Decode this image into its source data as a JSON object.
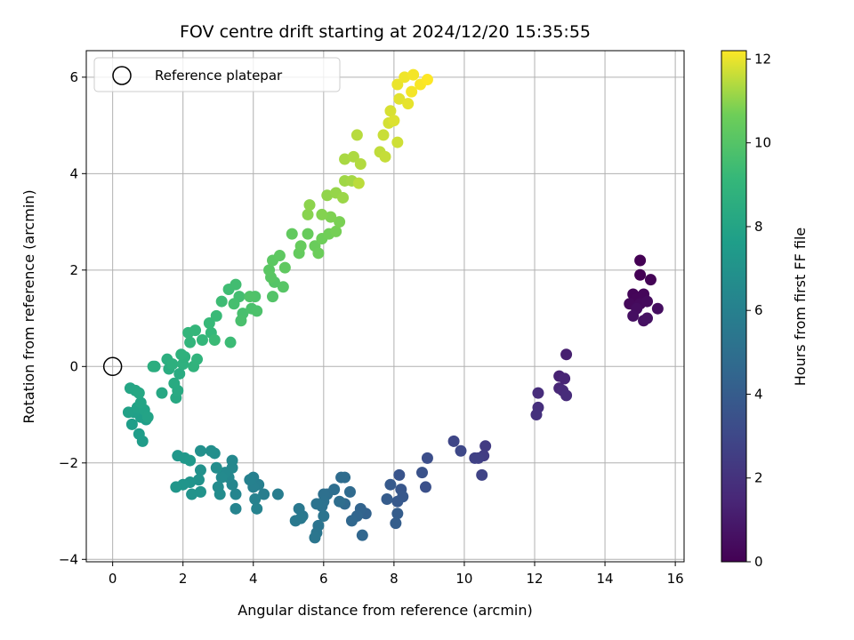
{
  "chart_data": {
    "type": "scatter",
    "title": "FOV centre drift starting at 2024/12/20 15:35:55",
    "xlabel": "Angular distance from reference (arcmin)",
    "ylabel": "Rotation from reference (arcmin)",
    "xlim": [
      -0.75,
      16.25
    ],
    "ylim": [
      -4.05,
      6.55
    ],
    "xticks": [
      0,
      2,
      4,
      6,
      8,
      10,
      12,
      14,
      16
    ],
    "yticks": [
      -4,
      -2,
      0,
      2,
      4,
      6
    ],
    "grid": true,
    "legend": {
      "placement": "top-left",
      "entries": [
        "Reference platepar"
      ]
    },
    "reference_point": {
      "x": 0,
      "y": 0,
      "label": "Reference platepar"
    },
    "colorbar": {
      "label": "Hours from first FF file",
      "range": [
        0,
        12.2
      ],
      "ticks": [
        0,
        2,
        4,
        6,
        8,
        10,
        12
      ],
      "colormap": "viridis"
    },
    "points_anchor": [
      [
        15.0,
        2.2,
        0.0
      ],
      [
        15.0,
        1.9,
        0.05
      ],
      [
        15.3,
        1.8,
        0.1
      ],
      [
        14.8,
        1.5,
        0.15
      ],
      [
        14.9,
        1.4,
        0.2
      ],
      [
        15.1,
        1.5,
        0.25
      ],
      [
        14.7,
        1.3,
        0.3
      ],
      [
        15.0,
        1.3,
        0.35
      ],
      [
        15.2,
        1.35,
        0.4
      ],
      [
        14.9,
        1.2,
        0.45
      ],
      [
        15.5,
        1.2,
        0.5
      ],
      [
        14.8,
        1.05,
        0.55
      ],
      [
        15.1,
        0.95,
        0.6
      ],
      [
        15.2,
        1.0,
        0.65
      ],
      [
        12.9,
        0.25,
        1.2
      ],
      [
        12.7,
        -0.2,
        1.3
      ],
      [
        12.85,
        -0.25,
        1.4
      ],
      [
        12.7,
        -0.45,
        1.5
      ],
      [
        12.8,
        -0.5,
        1.6
      ],
      [
        12.9,
        -0.6,
        1.7
      ],
      [
        12.1,
        -0.55,
        1.75
      ],
      [
        12.1,
        -0.85,
        1.85
      ],
      [
        12.05,
        -1.0,
        1.95
      ],
      [
        10.6,
        -1.65,
        2.4
      ],
      [
        10.55,
        -1.85,
        2.5
      ],
      [
        10.4,
        -1.9,
        2.6
      ],
      [
        10.3,
        -1.9,
        2.7
      ],
      [
        10.5,
        -2.25,
        2.8
      ],
      [
        9.7,
        -1.55,
        2.9
      ],
      [
        9.9,
        -1.75,
        3.0
      ],
      [
        8.95,
        -1.9,
        3.3
      ],
      [
        8.9,
        -2.5,
        3.4
      ],
      [
        8.8,
        -2.2,
        3.5
      ],
      [
        8.15,
        -2.25,
        3.6
      ],
      [
        8.2,
        -2.55,
        3.7
      ],
      [
        8.25,
        -2.7,
        3.8
      ],
      [
        8.1,
        -2.8,
        3.85
      ],
      [
        7.9,
        -2.45,
        3.9
      ],
      [
        7.8,
        -2.75,
        4.0
      ],
      [
        8.1,
        -3.05,
        4.05
      ],
      [
        8.05,
        -3.25,
        4.1
      ],
      [
        7.2,
        -3.05,
        4.3
      ],
      [
        7.05,
        -2.95,
        4.4
      ],
      [
        6.95,
        -3.1,
        4.5
      ],
      [
        7.1,
        -3.5,
        4.55
      ],
      [
        6.8,
        -3.2,
        4.6
      ],
      [
        6.6,
        -2.85,
        4.7
      ],
      [
        6.75,
        -2.6,
        4.75
      ],
      [
        6.5,
        -2.3,
        4.8
      ],
      [
        6.6,
        -2.3,
        4.85
      ],
      [
        6.45,
        -2.8,
        4.9
      ],
      [
        6.3,
        -2.55,
        4.95
      ],
      [
        6.1,
        -2.65,
        5.0
      ],
      [
        6.0,
        -2.65,
        5.05
      ],
      [
        6.0,
        -2.8,
        5.1
      ],
      [
        5.95,
        -2.9,
        5.15
      ],
      [
        5.8,
        -2.85,
        5.2
      ],
      [
        6.0,
        -3.1,
        5.25
      ],
      [
        5.85,
        -3.3,
        5.3
      ],
      [
        5.8,
        -3.45,
        5.35
      ],
      [
        5.75,
        -3.55,
        5.4
      ],
      [
        5.4,
        -3.1,
        5.45
      ],
      [
        5.3,
        -2.95,
        5.5
      ],
      [
        5.2,
        -3.2,
        5.55
      ],
      [
        5.35,
        -3.15,
        5.6
      ],
      [
        4.7,
        -2.65,
        5.8
      ],
      [
        4.3,
        -2.65,
        5.85
      ],
      [
        4.15,
        -2.45,
        5.9
      ],
      [
        4.0,
        -2.3,
        5.95
      ],
      [
        4.0,
        -2.5,
        6.0
      ],
      [
        3.9,
        -2.35,
        6.05
      ],
      [
        4.05,
        -2.75,
        6.1
      ],
      [
        4.1,
        -2.95,
        6.15
      ],
      [
        3.5,
        -2.95,
        6.2
      ],
      [
        3.5,
        -2.65,
        6.25
      ],
      [
        3.4,
        -2.45,
        6.3
      ],
      [
        3.3,
        -2.3,
        6.35
      ],
      [
        3.4,
        -2.1,
        6.4
      ],
      [
        3.4,
        -1.95,
        6.45
      ],
      [
        3.2,
        -2.2,
        6.5
      ],
      [
        3.1,
        -2.3,
        6.55
      ],
      [
        3.0,
        -2.5,
        6.6
      ],
      [
        3.05,
        -2.65,
        6.65
      ],
      [
        2.95,
        -2.1,
        6.7
      ],
      [
        2.9,
        -1.8,
        6.75
      ],
      [
        2.8,
        -1.75,
        6.8
      ],
      [
        2.5,
        -1.75,
        6.85
      ],
      [
        2.5,
        -2.15,
        6.9
      ],
      [
        2.45,
        -2.35,
        6.95
      ],
      [
        2.5,
        -2.6,
        7.0
      ],
      [
        2.25,
        -2.65,
        7.05
      ],
      [
        2.2,
        -2.4,
        7.1
      ],
      [
        2.0,
        -2.45,
        7.15
      ],
      [
        1.8,
        -2.5,
        7.2
      ],
      [
        1.85,
        -1.85,
        7.25
      ],
      [
        2.05,
        -1.9,
        7.3
      ],
      [
        2.2,
        -1.95,
        7.35
      ],
      [
        0.85,
        -1.55,
        7.5
      ],
      [
        0.75,
        -1.4,
        7.55
      ],
      [
        0.55,
        -1.2,
        7.6
      ],
      [
        0.95,
        -1.1,
        7.65
      ],
      [
        0.8,
        -1.05,
        7.7
      ],
      [
        0.6,
        -0.95,
        7.75
      ],
      [
        0.45,
        -0.95,
        7.8
      ],
      [
        0.7,
        -0.85,
        7.85
      ],
      [
        0.9,
        -0.9,
        7.9
      ],
      [
        1.0,
        -1.05,
        7.95
      ],
      [
        0.8,
        -0.75,
        8.0
      ],
      [
        0.5,
        -0.45,
        8.05
      ],
      [
        0.65,
        -0.5,
        8.1
      ],
      [
        0.75,
        -0.55,
        8.15
      ],
      [
        1.4,
        -0.55,
        8.2
      ],
      [
        1.8,
        -0.65,
        8.25
      ],
      [
        1.85,
        -0.5,
        8.3
      ],
      [
        1.75,
        -0.35,
        8.35
      ],
      [
        1.9,
        -0.15,
        8.4
      ],
      [
        1.6,
        -0.05,
        8.45
      ],
      [
        1.2,
        0.0,
        8.5
      ],
      [
        1.15,
        0.0,
        8.55
      ],
      [
        1.55,
        0.15,
        8.6
      ],
      [
        1.7,
        0.05,
        8.65
      ],
      [
        2.0,
        0.05,
        8.7
      ],
      [
        2.05,
        0.2,
        8.75
      ],
      [
        1.95,
        0.25,
        8.8
      ],
      [
        2.3,
        0.0,
        8.85
      ],
      [
        2.4,
        0.15,
        8.9
      ],
      [
        2.2,
        0.5,
        8.95
      ],
      [
        2.15,
        0.7,
        9.0
      ],
      [
        2.35,
        0.75,
        9.05
      ],
      [
        2.55,
        0.55,
        9.1
      ],
      [
        2.8,
        0.7,
        9.15
      ],
      [
        2.75,
        0.9,
        9.2
      ],
      [
        2.95,
        1.05,
        9.25
      ],
      [
        2.9,
        0.55,
        9.3
      ],
      [
        3.35,
        0.5,
        9.35
      ],
      [
        3.1,
        1.35,
        9.4
      ],
      [
        3.3,
        1.6,
        9.45
      ],
      [
        3.5,
        1.7,
        9.5
      ],
      [
        3.6,
        1.45,
        9.55
      ],
      [
        3.45,
        1.3,
        9.6
      ],
      [
        3.7,
        1.1,
        9.65
      ],
      [
        3.65,
        0.95,
        9.7
      ],
      [
        3.95,
        1.2,
        9.75
      ],
      [
        4.1,
        1.15,
        9.8
      ],
      [
        4.05,
        1.45,
        9.85
      ],
      [
        3.9,
        1.45,
        9.9
      ],
      [
        4.55,
        1.45,
        9.95
      ],
      [
        4.6,
        1.75,
        10.0
      ],
      [
        4.85,
        1.65,
        10.05
      ],
      [
        4.5,
        1.85,
        10.1
      ],
      [
        4.45,
        2.0,
        10.15
      ],
      [
        4.55,
        2.2,
        10.2
      ],
      [
        4.75,
        2.3,
        10.25
      ],
      [
        4.9,
        2.05,
        10.3
      ],
      [
        5.1,
        2.75,
        10.35
      ],
      [
        5.3,
        2.35,
        10.4
      ],
      [
        5.35,
        2.5,
        10.45
      ],
      [
        5.55,
        2.75,
        10.5
      ],
      [
        5.75,
        2.5,
        10.55
      ],
      [
        5.85,
        2.35,
        10.6
      ],
      [
        5.95,
        2.65,
        10.65
      ],
      [
        6.15,
        2.75,
        10.7
      ],
      [
        6.35,
        2.8,
        10.75
      ],
      [
        6.45,
        3.0,
        10.8
      ],
      [
        6.2,
        3.1,
        10.85
      ],
      [
        5.95,
        3.15,
        10.9
      ],
      [
        5.55,
        3.15,
        10.95
      ],
      [
        5.6,
        3.35,
        11.0
      ],
      [
        6.1,
        3.55,
        11.05
      ],
      [
        6.35,
        3.6,
        11.1
      ],
      [
        6.55,
        3.5,
        11.15
      ],
      [
        6.6,
        3.85,
        11.2
      ],
      [
        6.8,
        3.85,
        11.25
      ],
      [
        6.6,
        4.3,
        11.3
      ],
      [
        6.85,
        4.35,
        11.35
      ],
      [
        7.05,
        4.2,
        11.4
      ],
      [
        6.95,
        4.8,
        11.45
      ],
      [
        7.0,
        3.8,
        11.5
      ],
      [
        7.6,
        4.45,
        11.55
      ],
      [
        7.75,
        4.35,
        11.6
      ],
      [
        7.7,
        4.8,
        11.65
      ],
      [
        8.1,
        4.65,
        11.7
      ],
      [
        7.85,
        5.05,
        11.75
      ],
      [
        7.9,
        5.3,
        11.8
      ],
      [
        8.0,
        5.1,
        11.85
      ],
      [
        8.15,
        5.55,
        11.9
      ],
      [
        8.4,
        5.45,
        11.95
      ],
      [
        8.1,
        5.85,
        12.0
      ],
      [
        8.3,
        6.0,
        12.05
      ],
      [
        8.55,
        6.05,
        12.1
      ],
      [
        8.75,
        5.85,
        12.15
      ],
      [
        8.95,
        5.95,
        12.2
      ],
      [
        8.5,
        5.7,
        12.1
      ]
    ]
  }
}
